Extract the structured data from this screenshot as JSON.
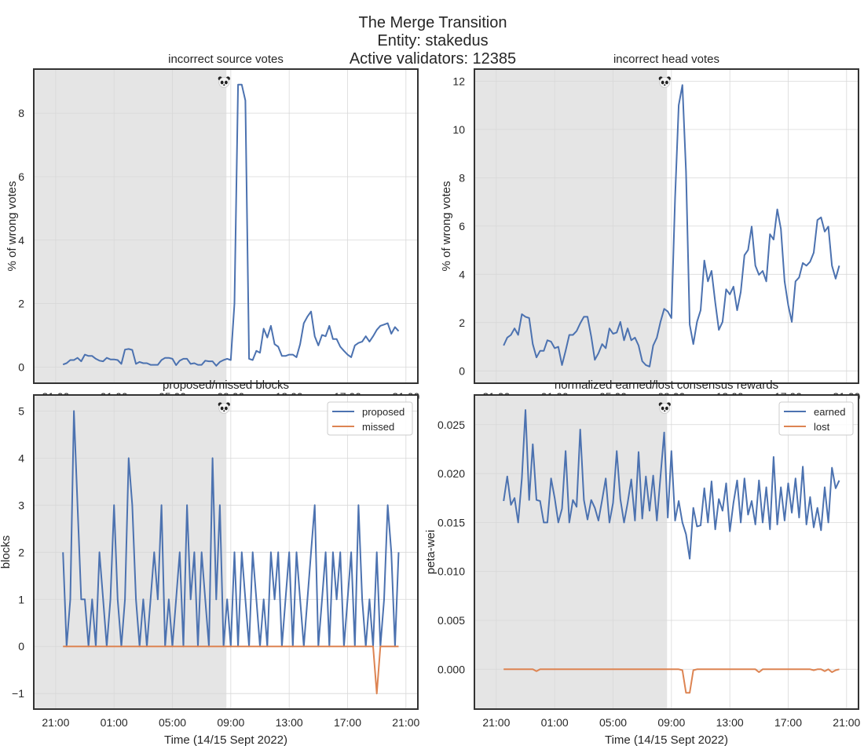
{
  "figure": {
    "title_lines": [
      "The Merge Transition",
      "Entity: stakedus",
      "Active validators: 12385"
    ],
    "marker_icon": "panda-icon"
  },
  "chart_data": {
    "type": "line",
    "colors": {
      "blue": "#4c72b0",
      "orange": "#dd8452",
      "shade": "#e5e5e5"
    },
    "xlim": [
      "2022-09-14 19:30",
      "2022-09-15 21:49"
    ],
    "shaded_region": [
      "2022-09-14 19:30",
      "2022-09-15 08:42"
    ],
    "merge_marker_time": "2022-09-15 08:42",
    "xticks": [
      {
        "t": "2022-09-14 21:00",
        "label": "21:00"
      },
      {
        "t": "2022-09-15 01:00",
        "label": "01:00"
      },
      {
        "t": "2022-09-15 05:00",
        "label": "05:00"
      },
      {
        "t": "2022-09-15 09:00",
        "label": "09:00"
      },
      {
        "t": "2022-09-15 13:00",
        "label": "13:00"
      },
      {
        "t": "2022-09-15 17:00",
        "label": "17:00"
      },
      {
        "t": "2022-09-15 21:00",
        "label": "21:00"
      }
    ],
    "xlabel": "Time (14/15 Sept 2022)",
    "grid": true,
    "x": [
      "2022-09-14 21:30",
      "2022-09-14 21:45",
      "2022-09-14 22:00",
      "2022-09-14 22:15",
      "2022-09-14 22:30",
      "2022-09-14 22:45",
      "2022-09-14 23:00",
      "2022-09-14 23:15",
      "2022-09-14 23:30",
      "2022-09-14 23:45",
      "2022-09-15 00:00",
      "2022-09-15 00:15",
      "2022-09-15 00:30",
      "2022-09-15 00:45",
      "2022-09-15 01:00",
      "2022-09-15 01:15",
      "2022-09-15 01:30",
      "2022-09-15 01:45",
      "2022-09-15 02:00",
      "2022-09-15 02:15",
      "2022-09-15 02:30",
      "2022-09-15 02:45",
      "2022-09-15 03:00",
      "2022-09-15 03:15",
      "2022-09-15 03:30",
      "2022-09-15 03:45",
      "2022-09-15 04:00",
      "2022-09-15 04:15",
      "2022-09-15 04:30",
      "2022-09-15 04:45",
      "2022-09-15 05:00",
      "2022-09-15 05:15",
      "2022-09-15 05:30",
      "2022-09-15 05:45",
      "2022-09-15 06:00",
      "2022-09-15 06:15",
      "2022-09-15 06:30",
      "2022-09-15 06:45",
      "2022-09-15 07:00",
      "2022-09-15 07:15",
      "2022-09-15 07:30",
      "2022-09-15 07:45",
      "2022-09-15 08:00",
      "2022-09-15 08:15",
      "2022-09-15 08:30",
      "2022-09-15 08:45",
      "2022-09-15 09:00",
      "2022-09-15 09:15",
      "2022-09-15 09:30",
      "2022-09-15 09:45",
      "2022-09-15 10:00",
      "2022-09-15 10:15",
      "2022-09-15 10:30",
      "2022-09-15 10:45",
      "2022-09-15 11:00",
      "2022-09-15 11:15",
      "2022-09-15 11:30",
      "2022-09-15 11:45",
      "2022-09-15 12:00",
      "2022-09-15 12:15",
      "2022-09-15 12:30",
      "2022-09-15 12:45",
      "2022-09-15 13:00",
      "2022-09-15 13:15",
      "2022-09-15 13:30",
      "2022-09-15 13:45",
      "2022-09-15 14:00",
      "2022-09-15 14:15",
      "2022-09-15 14:30",
      "2022-09-15 14:45",
      "2022-09-15 15:00",
      "2022-09-15 15:15",
      "2022-09-15 15:30",
      "2022-09-15 15:45",
      "2022-09-15 16:00",
      "2022-09-15 16:15",
      "2022-09-15 16:30",
      "2022-09-15 16:45",
      "2022-09-15 17:00",
      "2022-09-15 17:15",
      "2022-09-15 17:30",
      "2022-09-15 17:45",
      "2022-09-15 18:00",
      "2022-09-15 18:15",
      "2022-09-15 18:30",
      "2022-09-15 18:45",
      "2022-09-15 19:00",
      "2022-09-15 19:15",
      "2022-09-15 19:30",
      "2022-09-15 19:45",
      "2022-09-15 20:00",
      "2022-09-15 20:15",
      "2022-09-15 20:30"
    ],
    "panels": [
      {
        "title": "incorrect source votes",
        "ylabel": "% of wrong votes",
        "ylim": [
          -0.51,
          9.39
        ],
        "yticks": [
          {
            "v": 0,
            "label": "0"
          },
          {
            "v": 2,
            "label": "2"
          },
          {
            "v": 4,
            "label": "4"
          },
          {
            "v": 6,
            "label": "6"
          },
          {
            "v": 8,
            "label": "8"
          }
        ],
        "legend": false,
        "series": [
          {
            "color": "blue",
            "values": [
              0.08,
              0.12,
              0.22,
              0.22,
              0.29,
              0.18,
              0.39,
              0.35,
              0.35,
              0.26,
              0.2,
              0.18,
              0.29,
              0.24,
              0.24,
              0.22,
              0.1,
              0.55,
              0.57,
              0.54,
              0.1,
              0.16,
              0.12,
              0.12,
              0.07,
              0.07,
              0.07,
              0.22,
              0.29,
              0.29,
              0.26,
              0.06,
              0.2,
              0.26,
              0.26,
              0.1,
              0.12,
              0.07,
              0.07,
              0.2,
              0.18,
              0.18,
              0.04,
              0.16,
              0.22,
              0.26,
              0.22,
              2.0,
              8.9,
              8.9,
              8.4,
              0.26,
              0.22,
              0.51,
              0.45,
              1.21,
              0.93,
              1.3,
              0.72,
              0.64,
              0.35,
              0.35,
              0.39,
              0.39,
              0.31,
              0.72,
              1.38,
              1.59,
              1.75,
              0.97,
              0.68,
              1.01,
              0.97,
              1.3,
              0.88,
              0.88,
              0.64,
              0.51,
              0.39,
              0.31,
              0.68,
              0.76,
              0.8,
              0.97,
              0.8,
              0.97,
              1.17,
              1.3,
              1.34,
              1.38,
              1.05,
              1.26,
              1.13
            ]
          }
        ]
      },
      {
        "title": "incorrect head votes",
        "ylabel": "% of wrong votes",
        "ylim": [
          -0.51,
          12.5
        ],
        "yticks": [
          {
            "v": 0,
            "label": "0"
          },
          {
            "v": 2,
            "label": "2"
          },
          {
            "v": 4,
            "label": "4"
          },
          {
            "v": 6,
            "label": "6"
          },
          {
            "v": 8,
            "label": "8"
          },
          {
            "v": 10,
            "label": "10"
          },
          {
            "v": 12,
            "label": "12"
          }
        ],
        "legend": false,
        "series": [
          {
            "color": "blue",
            "values": [
              1.05,
              1.38,
              1.49,
              1.76,
              1.49,
              2.35,
              2.24,
              2.19,
              1.11,
              0.56,
              0.83,
              0.83,
              1.27,
              1.21,
              0.94,
              1.0,
              0.24,
              0.83,
              1.49,
              1.49,
              1.65,
              1.97,
              2.24,
              2.24,
              1.43,
              0.46,
              0.73,
              1.11,
              0.94,
              1.76,
              1.54,
              1.59,
              2.03,
              1.27,
              1.76,
              1.27,
              1.38,
              1.05,
              0.4,
              0.24,
              0.18,
              1.05,
              1.38,
              2.03,
              2.57,
              2.46,
              2.19,
              7.18,
              11.0,
              11.84,
              8.26,
              1.92,
              1.11,
              2.03,
              2.51,
              4.57,
              3.71,
              4.14,
              2.84,
              1.7,
              2.03,
              3.38,
              3.17,
              3.49,
              2.51,
              3.27,
              4.79,
              5.01,
              5.98,
              4.36,
              3.98,
              4.14,
              3.71,
              5.66,
              5.44,
              6.69,
              5.88,
              3.71,
              2.73,
              2.03,
              3.71,
              3.87,
              4.47,
              4.36,
              4.52,
              4.9,
              6.25,
              6.36,
              5.77,
              5.98,
              4.36,
              3.82,
              4.36
            ]
          }
        ]
      },
      {
        "title": "proposed/missed blocks",
        "ylabel": "blocks",
        "ylim": [
          -1.33,
          5.34
        ],
        "yticks": [
          {
            "v": -1,
            "label": "−1"
          },
          {
            "v": 0,
            "label": "0"
          },
          {
            "v": 1,
            "label": "1"
          },
          {
            "v": 2,
            "label": "2"
          },
          {
            "v": 3,
            "label": "3"
          },
          {
            "v": 4,
            "label": "4"
          },
          {
            "v": 5,
            "label": "5"
          }
        ],
        "legend": "top-right",
        "series": [
          {
            "name": "proposed",
            "color": "blue",
            "values": [
              2,
              0,
              1,
              5,
              3,
              1,
              1,
              0,
              1,
              0,
              2,
              1,
              0,
              1,
              3,
              1,
              0,
              1,
              4,
              3,
              1,
              0,
              1,
              0,
              1,
              2,
              1,
              3,
              0,
              1,
              0,
              1,
              2,
              0,
              3,
              1,
              2,
              0,
              2,
              1,
              0,
              4,
              1,
              3,
              0,
              1,
              0,
              2,
              0,
              2,
              1,
              0,
              2,
              1,
              0,
              1,
              0,
              2,
              1,
              2,
              0,
              1,
              2,
              0,
              2,
              1,
              0,
              1,
              2,
              3,
              0,
              1,
              2,
              0,
              2,
              1,
              2,
              0,
              1,
              2,
              0,
              3,
              1,
              0,
              1,
              0,
              2,
              0,
              1,
              3,
              2,
              0,
              2
            ]
          },
          {
            "name": "missed",
            "color": "orange",
            "values": [
              0,
              0,
              0,
              0,
              0,
              0,
              0,
              0,
              0,
              0,
              0,
              0,
              0,
              0,
              0,
              0,
              0,
              0,
              0,
              0,
              0,
              0,
              0,
              0,
              0,
              0,
              0,
              0,
              0,
              0,
              0,
              0,
              0,
              0,
              0,
              0,
              0,
              0,
              0,
              0,
              0,
              0,
              0,
              0,
              0,
              0,
              0,
              0,
              0,
              0,
              0,
              0,
              0,
              0,
              0,
              0,
              0,
              0,
              0,
              0,
              0,
              0,
              0,
              0,
              0,
              0,
              0,
              0,
              0,
              0,
              0,
              0,
              0,
              0,
              0,
              0,
              0,
              0,
              0,
              0,
              0,
              0,
              0,
              0,
              0,
              0,
              -1,
              0,
              0,
              0,
              0,
              0,
              0
            ]
          }
        ]
      },
      {
        "title": "normalized earned/lost consensus rewards",
        "ylabel": "peta-wei",
        "ylim": [
          -0.00407,
          0.02803
        ],
        "yticks": [
          {
            "v": 0,
            "label": "0.000"
          },
          {
            "v": 0.005,
            "label": "0.005"
          },
          {
            "v": 0.01,
            "label": "0.010"
          },
          {
            "v": 0.015,
            "label": "0.015"
          },
          {
            "v": 0.02,
            "label": "0.020"
          },
          {
            "v": 0.025,
            "label": "0.025"
          }
        ],
        "legend": "top-right",
        "series": [
          {
            "name": "earned",
            "color": "blue",
            "values": [
              0.0172,
              0.0197,
              0.0168,
              0.0175,
              0.015,
              0.0195,
              0.0265,
              0.0173,
              0.023,
              0.0173,
              0.0172,
              0.015,
              0.015,
              0.0195,
              0.0175,
              0.015,
              0.0164,
              0.0223,
              0.015,
              0.0173,
              0.0166,
              0.0245,
              0.0173,
              0.0153,
              0.0173,
              0.0165,
              0.0152,
              0.0173,
              0.0195,
              0.015,
              0.017,
              0.0223,
              0.0174,
              0.015,
              0.017,
              0.0194,
              0.0152,
              0.0222,
              0.0154,
              0.0197,
              0.0162,
              0.0198,
              0.0152,
              0.0197,
              0.0242,
              0.0155,
              0.0223,
              0.0152,
              0.0172,
              0.015,
              0.0138,
              0.0113,
              0.0165,
              0.0146,
              0.0147,
              0.0185,
              0.015,
              0.0192,
              0.0143,
              0.0174,
              0.0162,
              0.019,
              0.0141,
              0.017,
              0.0193,
              0.015,
              0.0195,
              0.0158,
              0.0172,
              0.0148,
              0.0193,
              0.015,
              0.0186,
              0.0143,
              0.0217,
              0.0148,
              0.0186,
              0.0152,
              0.019,
              0.016,
              0.0195,
              0.0155,
              0.0207,
              0.0148,
              0.0176,
              0.0145,
              0.0165,
              0.0142,
              0.0186,
              0.015,
              0.0206,
              0.0185,
              0.0193
            ]
          },
          {
            "name": "lost",
            "color": "orange",
            "values": [
              0,
              0,
              0,
              0,
              0,
              0,
              0,
              0,
              0,
              -0.0002,
              0,
              0,
              0,
              0,
              0,
              0,
              0,
              0,
              0,
              0,
              0,
              0,
              0,
              0,
              0,
              0,
              0,
              0,
              0,
              0,
              0,
              0,
              0,
              0,
              0,
              0,
              0,
              0,
              0,
              0,
              0,
              0,
              0,
              0,
              0,
              0,
              0,
              0,
              0,
              -0.0001,
              -0.0024,
              -0.0024,
              -0.0001,
              0,
              0,
              0,
              0,
              0,
              0,
              0,
              0,
              0,
              0,
              0,
              0,
              0,
              0,
              0,
              0,
              0,
              -0.0003,
              0,
              0,
              0,
              0,
              0,
              0,
              0,
              0,
              0,
              0,
              0,
              0,
              0,
              0,
              -0.0001,
              0,
              0,
              -0.0002,
              0,
              -0.0003,
              -0.0001,
              0
            ]
          }
        ]
      }
    ]
  }
}
